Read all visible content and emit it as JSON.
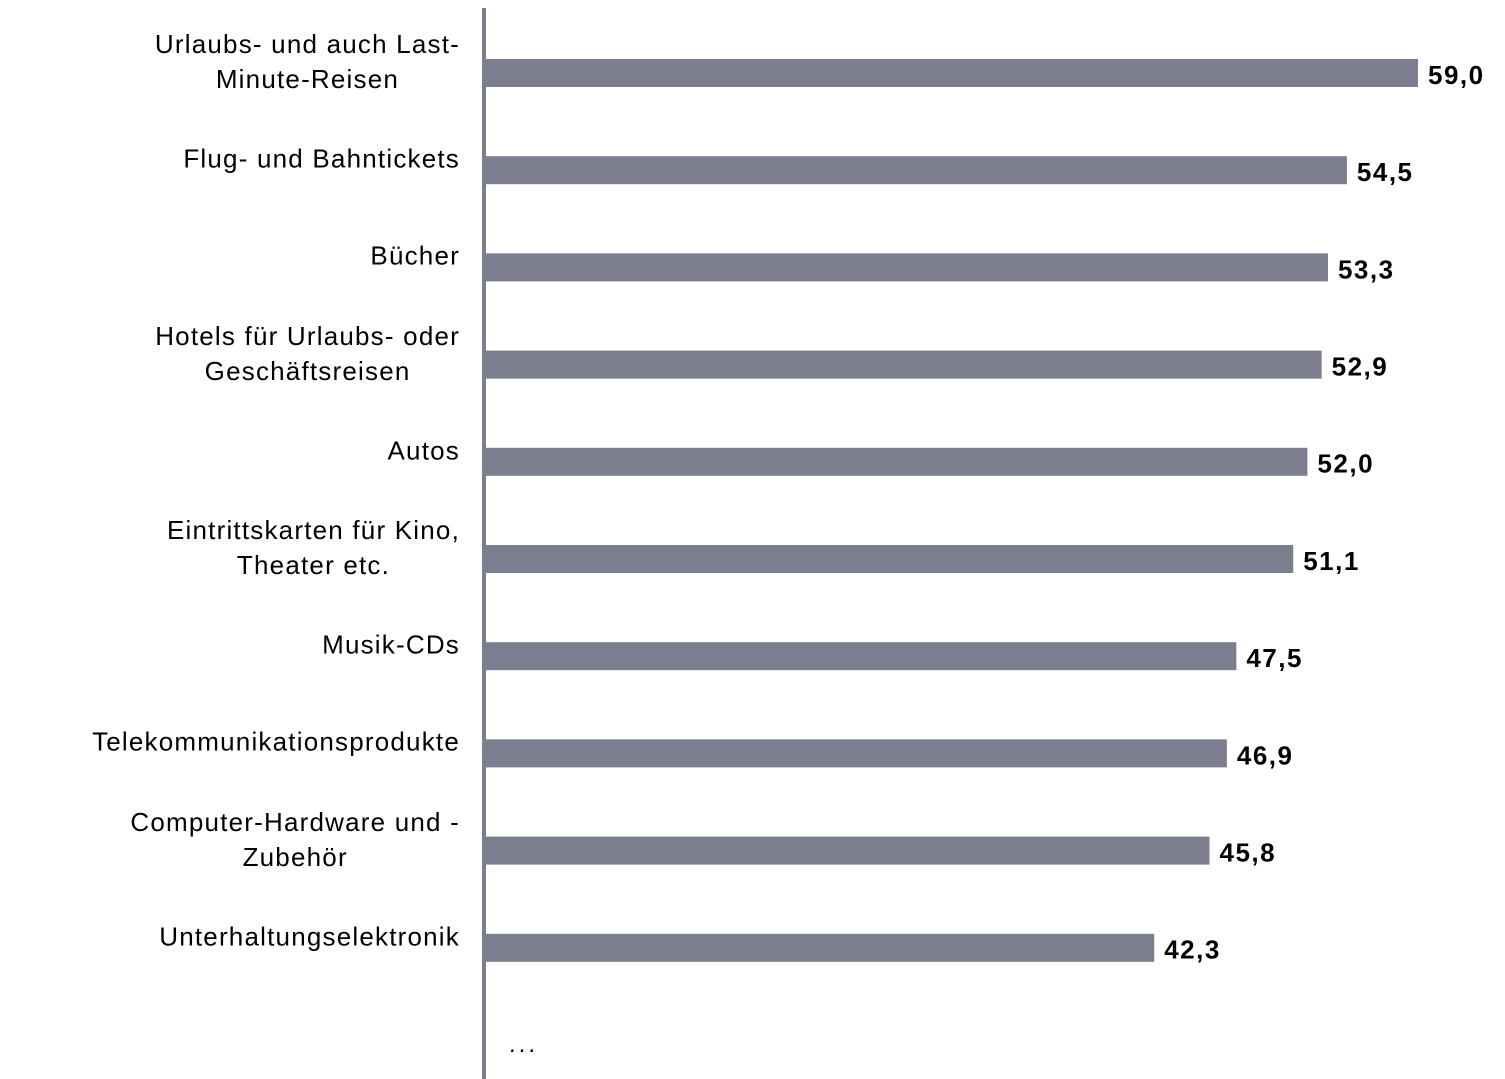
{
  "chart_data": {
    "type": "bar",
    "orientation": "horizontal",
    "categories": [
      "Urlaubs- und auch Last-\nMinute-Reisen",
      "Flug- und Bahntickets",
      "Bücher",
      "Hotels für Urlaubs- oder\nGeschäftsreisen",
      "Autos",
      "Eintrittskarten für Kino,\nTheater etc.",
      "Musik-CDs",
      "Telekommunikationsprodukte",
      "Computer-Hardware und -\nZubehör",
      "Unterhaltungselektronik"
    ],
    "values": [
      59.0,
      54.5,
      53.3,
      52.9,
      52.0,
      51.1,
      47.5,
      46.9,
      45.8,
      42.3
    ],
    "value_labels": [
      "59,0",
      "54,5",
      "53,3",
      "52,9",
      "52,0",
      "51,1",
      "47,5",
      "46,9",
      "45,8",
      "42,3"
    ],
    "color": "#7d7d90",
    "annotation": "..."
  }
}
